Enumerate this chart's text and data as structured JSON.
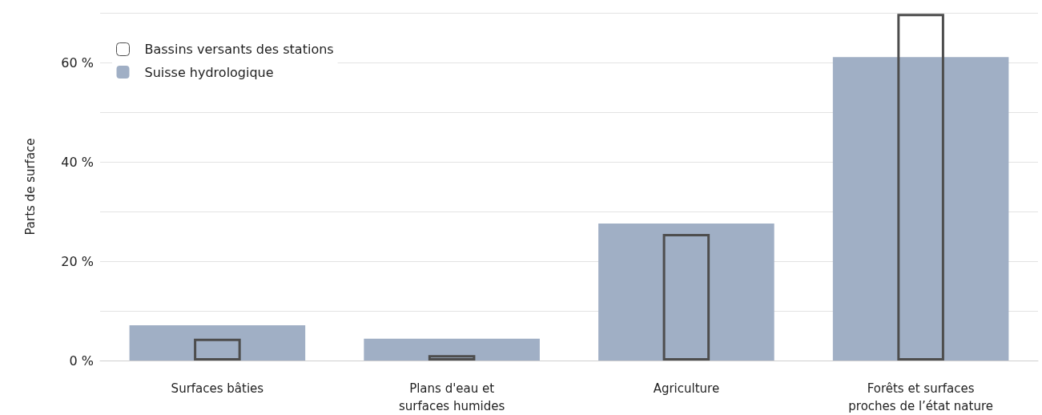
{
  "chart_data": {
    "type": "bar",
    "ylabel": "Parts de surface",
    "categories": [
      "Surfaces bâties",
      "Plans d'eau et\nsurfaces humides",
      "Agriculture",
      "Forêts et surfaces\nproches de l’état nature"
    ],
    "series": [
      {
        "name": "Bassins versants des stations",
        "color": "#4d4d4d",
        "values": [
          4.4,
          1.1,
          25.5,
          69.8
        ]
      },
      {
        "name": "Suisse hydrologique",
        "color": "#a0afc5",
        "values": [
          7.1,
          4.4,
          27.6,
          61.1
        ]
      }
    ],
    "ylim": [
      0,
      70
    ],
    "yticks": [
      {
        "value": 0,
        "label": "0 %"
      },
      {
        "value": 10,
        "label": null
      },
      {
        "value": 20,
        "label": "20 %"
      },
      {
        "value": 30,
        "label": null
      },
      {
        "value": 40,
        "label": "40 %"
      },
      {
        "value": 50,
        "label": null
      },
      {
        "value": 60,
        "label": "60 %"
      },
      {
        "value": 70,
        "label": null
      }
    ],
    "grid": "y",
    "legend": "top left"
  }
}
